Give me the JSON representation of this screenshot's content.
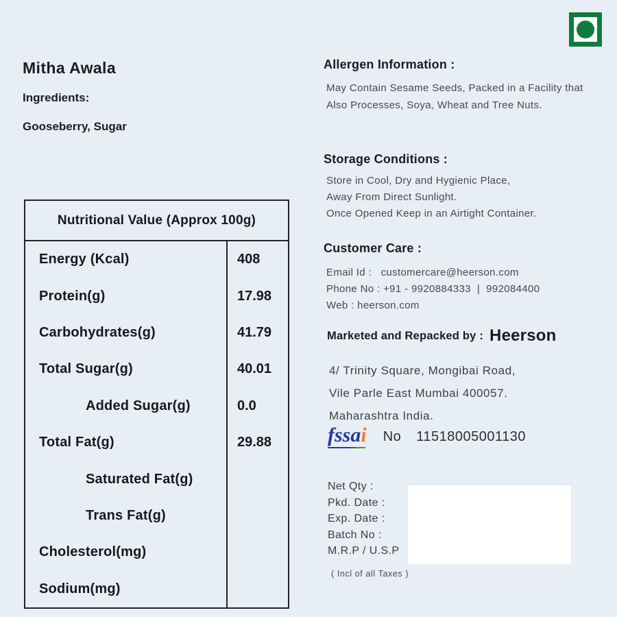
{
  "veg_mark": {
    "icon": "vegetarian-mark",
    "color": "#0f7b3e"
  },
  "product": {
    "title": "Mitha Awala",
    "ingredients_label": "Ingredients:",
    "ingredients_value": "Gooseberry, Sugar"
  },
  "nutrition_table": {
    "header": "Nutritional Value (Approx 100g)",
    "rows": [
      {
        "label": "Energy (Kcal)",
        "value": "408",
        "indent": false
      },
      {
        "label": "Protein(g)",
        "value": "17.98",
        "indent": false
      },
      {
        "label": "Carbohydrates(g)",
        "value": "41.79",
        "indent": false
      },
      {
        "label": "Total Sugar(g)",
        "value": "40.01",
        "indent": false
      },
      {
        "label": "Added Sugar(g)",
        "value": "0.0",
        "indent": true
      },
      {
        "label": "Total Fat(g)",
        "value": "29.88",
        "indent": false
      },
      {
        "label": "Saturated Fat(g)",
        "value": "",
        "indent": true
      },
      {
        "label": "Trans Fat(g)",
        "value": "",
        "indent": true
      },
      {
        "label": "Cholesterol(mg)",
        "value": "",
        "indent": false
      },
      {
        "label": "Sodium(mg)",
        "value": "",
        "indent": false
      }
    ]
  },
  "allergen": {
    "heading": "Allergen Information :",
    "lines": [
      "May Contain Sesame Seeds, Packed in a Facility that",
      "Also Processes, Soya, Wheat and Tree Nuts."
    ]
  },
  "storage": {
    "heading": "Storage Conditions :",
    "lines": [
      "Store in Cool, Dry and Hygienic Place,",
      "Away From Direct Sunlight.",
      "Once Opened Keep in an Airtight Container."
    ]
  },
  "customer_care": {
    "heading": "Customer Care :",
    "email": "Email Id :   customercare@heerson.com",
    "phone": "Phone No : +91 - 9920884333  |  992084400",
    "web": "Web : heerson.com"
  },
  "marketer": {
    "label": "Marketed and Repacked by :",
    "brand": "Heerson",
    "address_lines": [
      "4/ Trinity Square, Mongibai Road,",
      "Vile Parle East Mumbai 400057.",
      "Maharashtra India."
    ],
    "fssai": {
      "part1": "fssa",
      "part2": "i",
      "no_label": "No",
      "number": "11518005001130"
    }
  },
  "pack_info": {
    "labels": [
      "Net Qty :",
      "Pkd. Date :",
      "Exp. Date :",
      "Batch No :",
      "M.R.P / U.S.P"
    ],
    "taxes_note": "( Incl of all Taxes )"
  }
}
